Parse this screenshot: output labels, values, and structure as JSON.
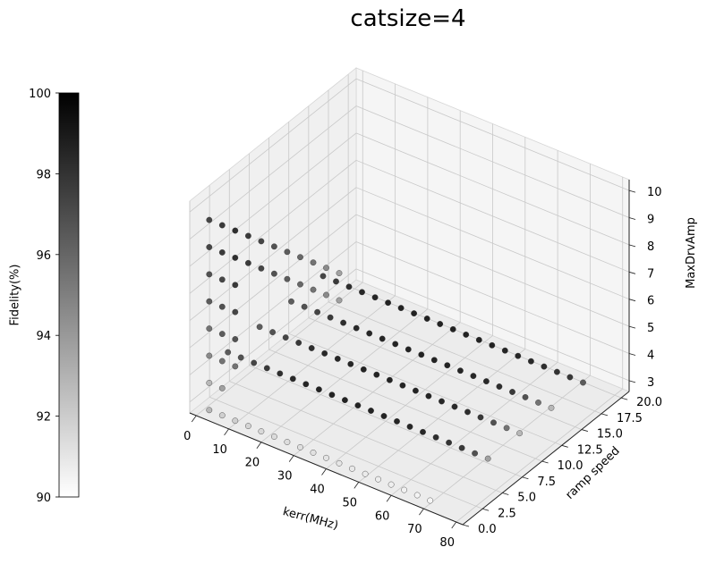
{
  "title": "catsize=4",
  "chart_data": {
    "type": "scatter",
    "subtype": "3d",
    "title": "catsize=4",
    "xlabel": "kerr(MHz)",
    "ylabel": "ramp speed",
    "zlabel": "MaxDrvAmp",
    "xticks": [
      "0",
      "10",
      "20",
      "30",
      "40",
      "50",
      "60",
      "70",
      "80"
    ],
    "yticks": [
      "0.0",
      "2.5",
      "5.0",
      "7.5",
      "10.0",
      "12.5",
      "15.0",
      "17.5",
      "20.0"
    ],
    "zticks": [
      "3",
      "4",
      "5",
      "6",
      "7",
      "8",
      "9",
      "10"
    ],
    "xlim": [
      -2,
      82
    ],
    "ylim": [
      0,
      21
    ],
    "zlim": [
      2.6,
      10.4
    ],
    "colorbar": {
      "label": "Fidelity(%)",
      "range": [
        90,
        100
      ],
      "ticks": [
        "90",
        "92",
        "94",
        "96",
        "98",
        "100"
      ],
      "colormap": "Greys"
    },
    "grid": true,
    "series": [
      {
        "ramp_speed": 0,
        "max_drv_amp": 3,
        "kerr": [
          4,
          8,
          12,
          16,
          20,
          24,
          28,
          32,
          36,
          40,
          44,
          48,
          52,
          56,
          60,
          64,
          68,
          72
        ],
        "fidelity": [
          93,
          92,
          92,
          91.8,
          91.6,
          91.5,
          91.4,
          91.3,
          91.2,
          91.1,
          91,
          90.9,
          90.8,
          90.7,
          90.6,
          90.5,
          90.4,
          90.3
        ]
      },
      {
        "ramp_speed": 0,
        "max_drv_amp": 4,
        "kerr": [
          4,
          8
        ],
        "fidelity": [
          93,
          94
        ]
      },
      {
        "ramp_speed": 4,
        "max_drv_amp": 4,
        "kerr": [
          0,
          4,
          8,
          12,
          16,
          20,
          24,
          28,
          32,
          36,
          40,
          44,
          48,
          52,
          56,
          60,
          64,
          68,
          72,
          76,
          80
        ],
        "fidelity": [
          97,
          97.5,
          98,
          98.5,
          99,
          99.2,
          99.4,
          99.5,
          99.5,
          99.5,
          99.5,
          99.5,
          99.5,
          99.4,
          99.3,
          99.2,
          99,
          98.8,
          98.5,
          97.5,
          94
        ]
      },
      {
        "ramp_speed": 8,
        "max_drv_amp": 4,
        "kerr": [
          0,
          4,
          8,
          12,
          16,
          20,
          24,
          28,
          32,
          36,
          40,
          44,
          48,
          52,
          56,
          60,
          64,
          68,
          72,
          76,
          80
        ],
        "fidelity": [
          97,
          97.5,
          98,
          98.5,
          99,
          99.2,
          99.3,
          99.4,
          99.5,
          99.5,
          99.5,
          99.5,
          99.5,
          99.4,
          99.3,
          99.2,
          99,
          98.5,
          97.5,
          96,
          93
        ]
      },
      {
        "ramp_speed": 12,
        "max_drv_amp": 4,
        "kerr": [
          0,
          4,
          8,
          12,
          16,
          20,
          24,
          28,
          32,
          36,
          40,
          44,
          48,
          52,
          56,
          60,
          64,
          68,
          72,
          76,
          80
        ],
        "fidelity": [
          97,
          97.5,
          98,
          98.5,
          99,
          99.2,
          99.3,
          99.4,
          99.5,
          99.5,
          99.5,
          99.5,
          99.5,
          99.4,
          99.3,
          99.2,
          99,
          98.5,
          97.5,
          96,
          93
        ]
      },
      {
        "ramp_speed": 16,
        "max_drv_amp": 4,
        "kerr": [
          0,
          4,
          8,
          12,
          16,
          20,
          24,
          28,
          32,
          36,
          40,
          44,
          48,
          52,
          56,
          60,
          64,
          68,
          72,
          76,
          80
        ],
        "fidelity": [
          98,
          98.5,
          99,
          99.2,
          99.4,
          99.5,
          99.5,
          99.5,
          99.5,
          99.5,
          99.5,
          99.5,
          99.5,
          99.5,
          99.4,
          99.3,
          99.2,
          99,
          98.8,
          98.5,
          97
        ]
      },
      {
        "ramp_speed": 0,
        "max_drv_amp": 5,
        "kerr": [
          4,
          8,
          12
        ],
        "fidelity": [
          95,
          96,
          96
        ]
      },
      {
        "ramp_speed": 0,
        "max_drv_amp": 6,
        "kerr": [
          4,
          8,
          12
        ],
        "fidelity": [
          96,
          97,
          97.5
        ]
      },
      {
        "ramp_speed": 0,
        "max_drv_amp": 7,
        "kerr": [
          4,
          8,
          12
        ],
        "fidelity": [
          97,
          97.5,
          98
        ]
      },
      {
        "ramp_speed": 0,
        "max_drv_amp": 8,
        "kerr": [
          4,
          8,
          12
        ],
        "fidelity": [
          97.5,
          98,
          98.5
        ]
      },
      {
        "ramp_speed": 0,
        "max_drv_amp": 9,
        "kerr": [
          4,
          8,
          12,
          16,
          20,
          24,
          28,
          32,
          36,
          40,
          44
        ],
        "fidelity": [
          98,
          98.5,
          99,
          98.5,
          98,
          97.5,
          97,
          96.5,
          96,
          95,
          94
        ]
      },
      {
        "ramp_speed": 0,
        "max_drv_amp": 10,
        "kerr": [
          4,
          8,
          12,
          16,
          20,
          24,
          28,
          32,
          36,
          40,
          44
        ],
        "fidelity": [
          98,
          98.5,
          99,
          98.5,
          98,
          97.5,
          97,
          96.5,
          96,
          95,
          94
        ]
      }
    ]
  }
}
